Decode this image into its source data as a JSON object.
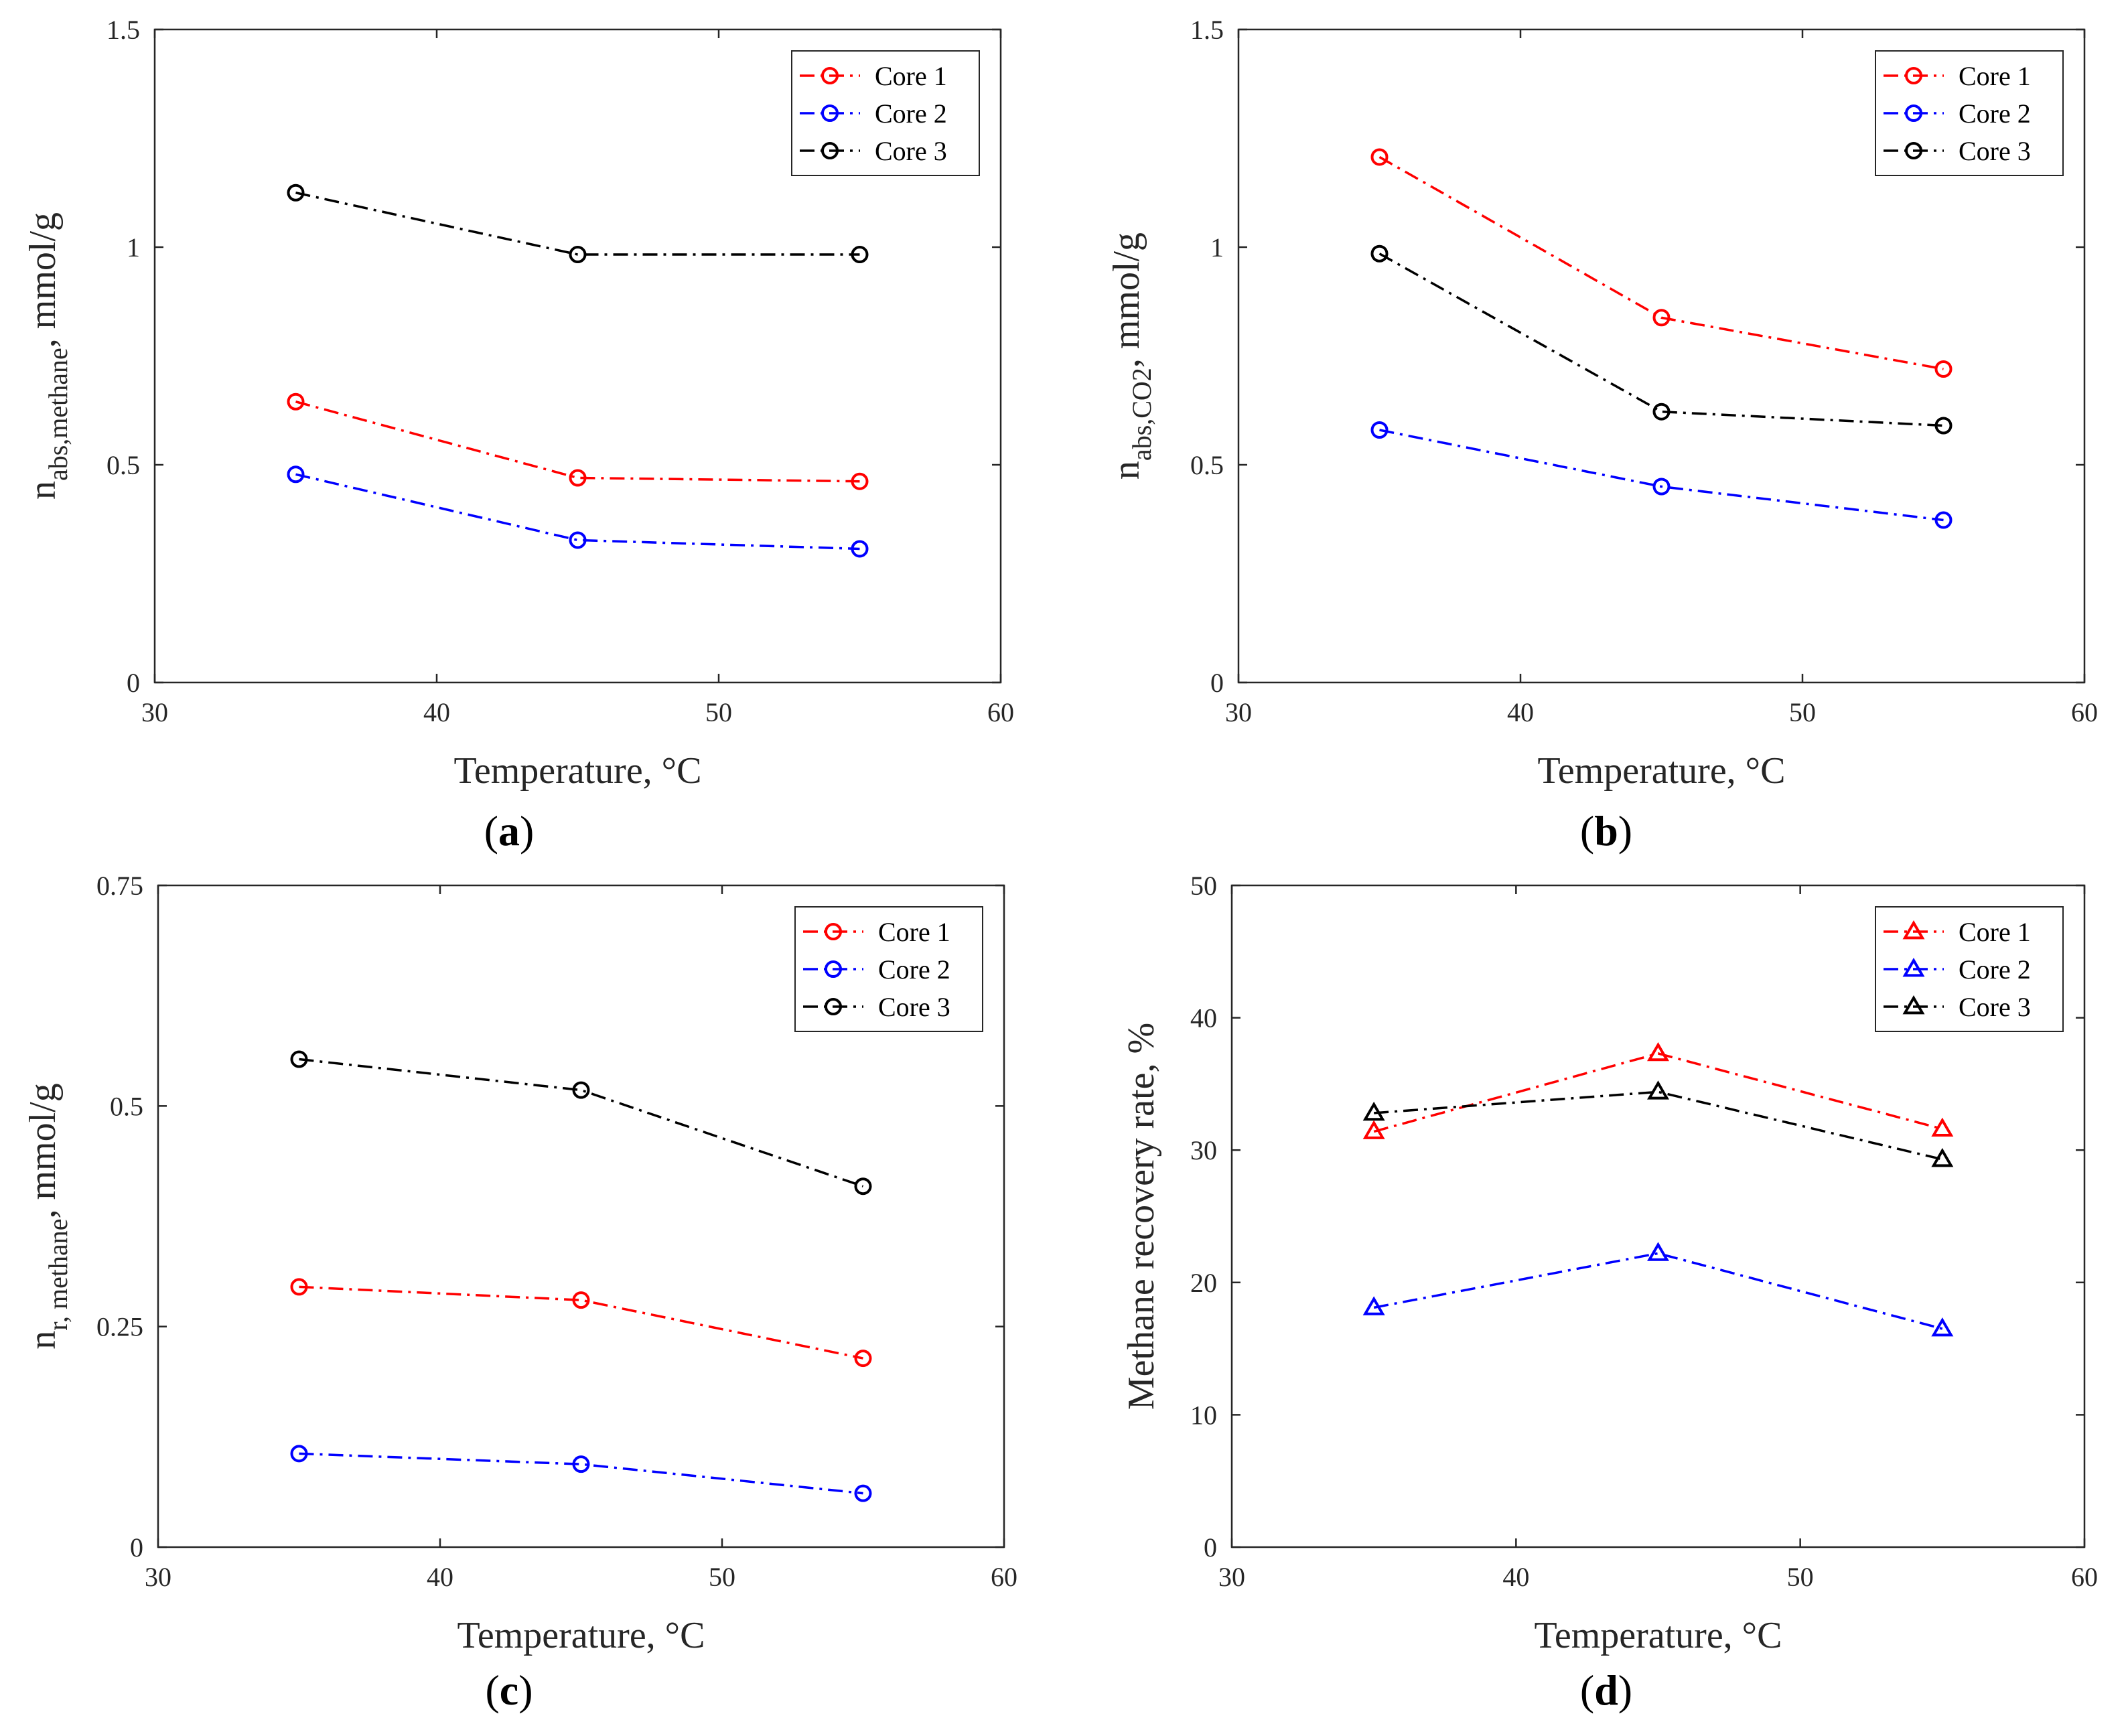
{
  "colors": {
    "core1": "#ff0000",
    "core2": "#0000ff",
    "core3": "#000000",
    "axis": "#262626"
  },
  "chart_data": [
    {
      "panel": "(a)",
      "type": "line",
      "marker": "circle",
      "x": [
        35,
        45,
        55
      ],
      "xlim": [
        30,
        60
      ],
      "xticks": [
        "30",
        "40",
        "50",
        "60"
      ],
      "ylim": [
        0,
        1.5
      ],
      "yticks": [
        "0",
        "0.5",
        "1",
        "1.5"
      ],
      "xlabel": "Temperature, °C",
      "ylabel": {
        "main": "n",
        "sub": "abs,methane",
        "unit": ",  mmol/g"
      },
      "grid": false,
      "legend_position": "top-right",
      "series": [
        {
          "name": "Core 1",
          "color": "#ff0000",
          "dash": "dash-dot",
          "values": [
            0.645,
            0.47,
            0.462
          ]
        },
        {
          "name": "Core 2",
          "color": "#0000ff",
          "dash": "dash-dot",
          "values": [
            0.478,
            0.327,
            0.307
          ]
        },
        {
          "name": "Core 3",
          "color": "#000000",
          "dash": "dash-dot",
          "values": [
            1.125,
            0.983,
            0.983
          ]
        }
      ]
    },
    {
      "panel": "(b)",
      "type": "line",
      "marker": "circle",
      "x": [
        35,
        45,
        55
      ],
      "xlim": [
        30,
        60
      ],
      "xticks": [
        "30",
        "40",
        "50",
        "60"
      ],
      "ylim": [
        0,
        1.5
      ],
      "yticks": [
        "0",
        "0.5",
        "1",
        "1.5"
      ],
      "xlabel": "Temperature, °C",
      "ylabel": {
        "main": "n",
        "sub": "abs,CO2",
        "unit": ",  mmol/g"
      },
      "grid": false,
      "legend_position": "top-right",
      "series": [
        {
          "name": "Core 1",
          "color": "#ff0000",
          "dash": "dash-dot",
          "values": [
            1.207,
            0.838,
            0.72
          ]
        },
        {
          "name": "Core 2",
          "color": "#0000ff",
          "dash": "dash-dot",
          "values": [
            0.58,
            0.45,
            0.373
          ]
        },
        {
          "name": "Core 3",
          "color": "#000000",
          "dash": "dash-dot",
          "values": [
            0.985,
            0.622,
            0.59
          ]
        }
      ]
    },
    {
      "panel": "(c)",
      "type": "line",
      "marker": "circle",
      "x": [
        35,
        45,
        55
      ],
      "xlim": [
        30,
        60
      ],
      "xticks": [
        "30",
        "40",
        "50",
        "60"
      ],
      "ylim": [
        0,
        0.75
      ],
      "yticks": [
        "0",
        "0.25",
        "0.5",
        "0.75"
      ],
      "xlabel": "Temperature, °C",
      "ylabel": {
        "main": "n",
        "sub": "r, methane",
        "unit": ",  mmol/g"
      },
      "grid": false,
      "legend_position": "top-right",
      "series": [
        {
          "name": "Core 1",
          "color": "#ff0000",
          "dash": "dash-dot",
          "values": [
            0.295,
            0.28,
            0.214
          ]
        },
        {
          "name": "Core 2",
          "color": "#0000ff",
          "dash": "dash-dot",
          "values": [
            0.106,
            0.094,
            0.061
          ]
        },
        {
          "name": "Core 3",
          "color": "#000000",
          "dash": "dash-dot",
          "values": [
            0.553,
            0.518,
            0.409
          ]
        }
      ]
    },
    {
      "panel": "(d)",
      "type": "line",
      "marker": "triangle",
      "x": [
        35,
        45,
        55
      ],
      "xlim": [
        30,
        60
      ],
      "xticks": [
        "30",
        "40",
        "50",
        "60"
      ],
      "ylim": [
        0,
        50
      ],
      "yticks": [
        "0",
        "10",
        "20",
        "30",
        "40",
        "50"
      ],
      "xlabel": "Temperature, °C",
      "ylabel": {
        "main": "Methane recovery rate, %",
        "sub": "",
        "unit": ""
      },
      "grid": false,
      "legend_position": "top-right",
      "series": [
        {
          "name": "Core 1",
          "color": "#ff0000",
          "dash": "dash-dot",
          "values": [
            31.4,
            37.3,
            31.6
          ]
        },
        {
          "name": "Core 2",
          "color": "#0000ff",
          "dash": "dash-dot",
          "values": [
            18.1,
            22.2,
            16.5
          ]
        },
        {
          "name": "Core 3",
          "color": "#000000",
          "dash": "dash-dot",
          "values": [
            32.8,
            34.4,
            29.3
          ]
        }
      ]
    }
  ]
}
